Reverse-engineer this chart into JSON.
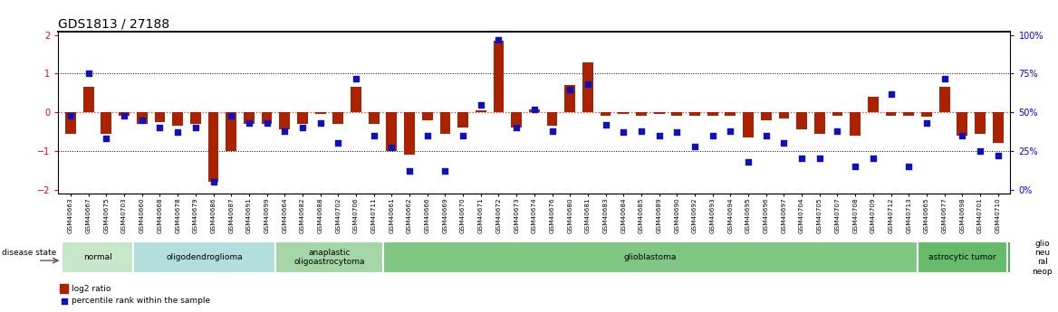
{
  "title": "GDS1813 / 27188",
  "samples": [
    "GSM40663",
    "GSM40667",
    "GSM40675",
    "GSM40703",
    "GSM40660",
    "GSM40668",
    "GSM40678",
    "GSM40679",
    "GSM40686",
    "GSM40687",
    "GSM40691",
    "GSM40699",
    "GSM40664",
    "GSM40682",
    "GSM40688",
    "GSM40702",
    "GSM40706",
    "GSM40711",
    "GSM40661",
    "GSM40662",
    "GSM40666",
    "GSM40669",
    "GSM40670",
    "GSM40671",
    "GSM40672",
    "GSM40673",
    "GSM40674",
    "GSM40676",
    "GSM40680",
    "GSM40681",
    "GSM40683",
    "GSM40684",
    "GSM40685",
    "GSM40689",
    "GSM40690",
    "GSM40692",
    "GSM40693",
    "GSM40694",
    "GSM40695",
    "GSM40696",
    "GSM40697",
    "GSM40704",
    "GSM40705",
    "GSM40707",
    "GSM40708",
    "GSM40709",
    "GSM40712",
    "GSM40713",
    "GSM40665",
    "GSM40677",
    "GSM40698",
    "GSM40701",
    "GSM40710"
  ],
  "log2_ratio": [
    -0.55,
    0.65,
    -0.55,
    -0.1,
    -0.3,
    -0.25,
    -0.35,
    -0.3,
    -1.8,
    -1.0,
    -0.3,
    -0.3,
    -0.45,
    -0.3,
    -0.05,
    -0.3,
    0.65,
    -0.3,
    -1.0,
    -1.1,
    -0.2,
    -0.55,
    -0.4,
    0.05,
    1.85,
    -0.4,
    0.08,
    -0.35,
    0.7,
    1.3,
    -0.08,
    -0.05,
    -0.1,
    -0.05,
    -0.1,
    -0.08,
    -0.08,
    -0.1,
    -0.65,
    -0.2,
    -0.15,
    -0.45,
    -0.55,
    -0.08,
    -0.6,
    0.4,
    -0.08,
    -0.1,
    -0.12,
    0.65,
    -0.6,
    -0.55,
    -0.8
  ],
  "pct_rank": [
    48,
    75,
    33,
    48,
    45,
    40,
    37,
    40,
    5,
    48,
    43,
    43,
    38,
    40,
    43,
    30,
    72,
    35,
    27,
    12,
    35,
    12,
    35,
    55,
    97,
    40,
    52,
    38,
    65,
    68,
    42,
    37,
    38,
    35,
    37,
    28,
    35,
    38,
    18,
    35,
    30,
    20,
    20,
    38,
    15,
    20,
    62,
    15,
    43,
    72,
    35,
    25,
    22
  ],
  "disease_groups": [
    {
      "label": "normal",
      "start": 0,
      "end": 4,
      "color": "#c8e6c9"
    },
    {
      "label": "oligodendroglioma",
      "start": 4,
      "end": 12,
      "color": "#b2dfdb"
    },
    {
      "label": "anaplastic\noligoastrocytoma",
      "start": 12,
      "end": 18,
      "color": "#a5d6a7"
    },
    {
      "label": "glioblastoma",
      "start": 18,
      "end": 48,
      "color": "#81c784"
    },
    {
      "label": "astrocytic tumor",
      "start": 48,
      "end": 53,
      "color": "#66bb6a"
    },
    {
      "label": "glio\nneu\nral\nneop",
      "start": 53,
      "end": 53,
      "color": "#4caf50"
    }
  ],
  "ylim": [
    -2.1,
    2.1
  ],
  "yticks_left": [
    -2,
    -1,
    0,
    1,
    2
  ],
  "pct_yticks": [
    0,
    25,
    50,
    75,
    100
  ],
  "bar_color": "#aa2200",
  "dot_color": "#1111bb",
  "hline_color": "#cc3333",
  "background_color": "#ffffff",
  "title_fontsize": 10,
  "tick_fontsize": 7,
  "label_fontsize": 7.5
}
